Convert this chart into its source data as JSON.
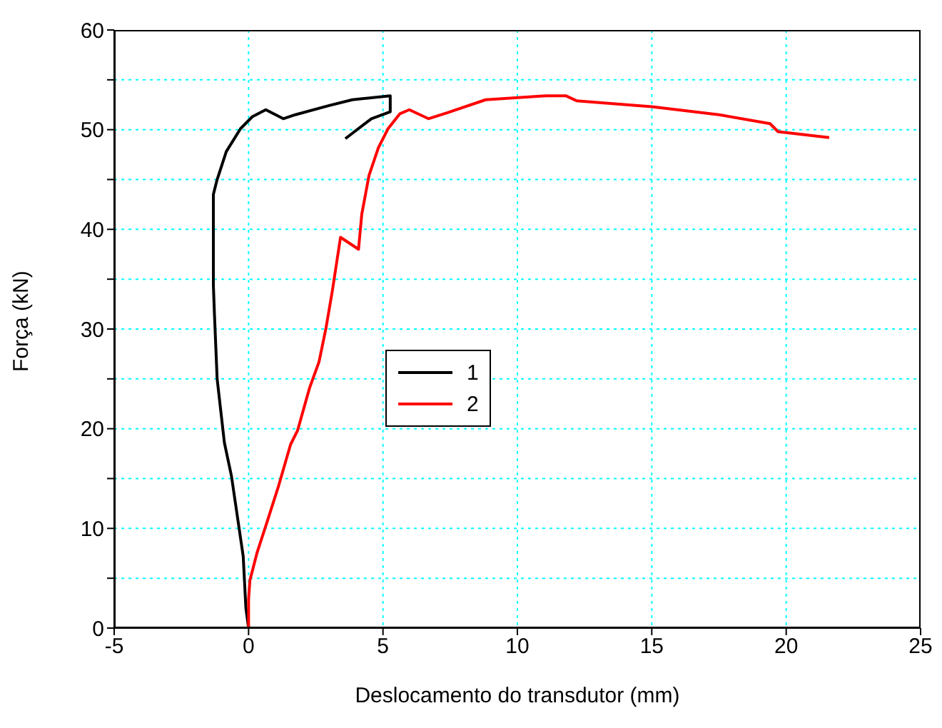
{
  "chart_data": {
    "type": "line",
    "xlabel": "Deslocamento do transdutor (mm)",
    "ylabel": "Força (kN)",
    "xlim": [
      -5,
      25
    ],
    "xticks": [
      -5,
      0,
      5,
      10,
      15,
      20,
      25
    ],
    "ylim": [
      0,
      60
    ],
    "yticks": [
      0,
      {
        "value": 5,
        "label": null
      },
      10,
      {
        "value": 15,
        "label": null
      },
      20,
      {
        "value": 25,
        "label": null
      },
      30,
      {
        "value": 35,
        "label": null
      },
      40,
      {
        "value": 45,
        "label": null
      },
      50,
      {
        "value": 55,
        "label": null
      },
      60
    ],
    "grid": true,
    "legend": "center",
    "marker": "none",
    "line_style": "solid",
    "series": [
      {
        "name": "1",
        "color": "#000000",
        "x": [
          0,
          -0.1,
          -0.2,
          -0.64,
          -0.9,
          -1.17,
          -1.27,
          -1.31,
          -1.31,
          -1.18,
          -0.83,
          -0.3,
          0.14,
          0.64,
          1.29,
          1.74,
          2.97,
          3.86,
          5.27,
          5.27,
          4.57,
          3.6
        ],
        "values": [
          0,
          2,
          7.2,
          15.3,
          18.6,
          25,
          31.5,
          34.4,
          43.5,
          44.9,
          47.8,
          50.1,
          51.3,
          52,
          51.1,
          51.5,
          52.4,
          53,
          53.4,
          51.8,
          51.1,
          49.1
        ]
      },
      {
        "name": "2",
        "color": "#ff0000",
        "x": [
          0,
          0,
          0.05,
          0.32,
          0.67,
          1.12,
          1.56,
          1.82,
          2.27,
          2.62,
          2.88,
          3.12,
          3.42,
          4.09,
          4.21,
          4.48,
          4.83,
          5.19,
          5.63,
          5.98,
          6.69,
          7.4,
          8.82,
          11.1,
          11.8,
          12.2,
          15,
          17.5,
          19.4,
          19.7,
          21.6
        ],
        "values": [
          0,
          2.9,
          4.8,
          7.6,
          10.5,
          14.3,
          18.4,
          19.8,
          24.1,
          26.7,
          30.1,
          33.9,
          39.2,
          38,
          41.5,
          45.4,
          48.2,
          50.1,
          51.6,
          52,
          51.1,
          51.7,
          53,
          53.4,
          53.4,
          52.9,
          52.3,
          51.5,
          50.6,
          49.8,
          49.2
        ]
      }
    ]
  }
}
